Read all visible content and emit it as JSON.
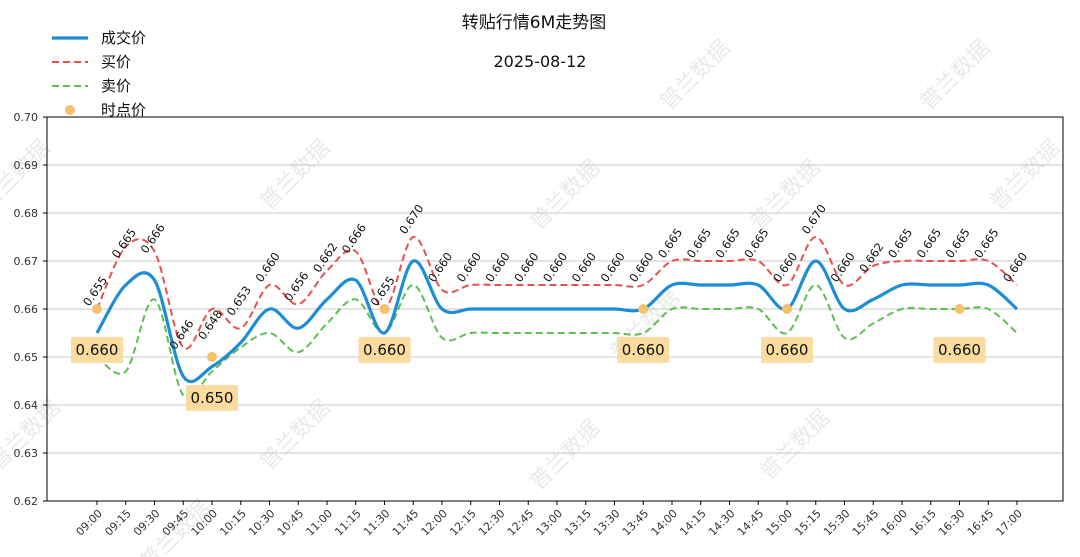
{
  "chart_data": {
    "type": "line",
    "title": "转贴行情6M走势图",
    "subtitle": "2025-08-12",
    "xlabel": "",
    "ylabel": "",
    "ylim": [
      0.62,
      0.7
    ],
    "yticks": [
      "0.62",
      "0.63",
      "0.64",
      "0.65",
      "0.66",
      "0.67",
      "0.68",
      "0.69",
      "0.70"
    ],
    "grid": "horizontal",
    "legend_position": "top-left",
    "categories": [
      "09:00",
      "09:15",
      "09:30",
      "09:45",
      "10:00",
      "10:15",
      "10:30",
      "10:45",
      "11:00",
      "11:15",
      "11:30",
      "11:45",
      "12:00",
      "12:15",
      "12:30",
      "12:45",
      "13:00",
      "13:15",
      "13:30",
      "13:45",
      "14:00",
      "14:15",
      "14:30",
      "14:45",
      "15:00",
      "15:15",
      "15:30",
      "15:45",
      "16:00",
      "16:15",
      "16:30",
      "16:45",
      "17:00"
    ],
    "series": [
      {
        "name": "成交价",
        "color": "#1f8dd6",
        "style": "solid",
        "values": [
          0.655,
          0.665,
          0.666,
          0.646,
          0.648,
          0.653,
          0.66,
          0.656,
          0.662,
          0.666,
          0.655,
          0.67,
          0.66,
          0.66,
          0.66,
          0.66,
          0.66,
          0.66,
          0.66,
          0.66,
          0.665,
          0.665,
          0.665,
          0.665,
          0.66,
          0.67,
          0.66,
          0.662,
          0.665,
          0.665,
          0.665,
          0.665,
          0.66
        ]
      },
      {
        "name": "买价",
        "color": "#e8504f",
        "style": "dashed",
        "values": [
          0.66,
          0.673,
          0.672,
          0.652,
          0.66,
          0.656,
          0.665,
          0.661,
          0.668,
          0.672,
          0.66,
          0.675,
          0.664,
          0.665,
          0.665,
          0.665,
          0.665,
          0.665,
          0.665,
          0.665,
          0.67,
          0.67,
          0.67,
          0.67,
          0.665,
          0.675,
          0.665,
          0.669,
          0.67,
          0.67,
          0.67,
          0.67,
          0.665
        ]
      },
      {
        "name": "卖价",
        "color": "#5cbf4f",
        "style": "dashed",
        "values": [
          0.65,
          0.647,
          0.662,
          0.642,
          0.647,
          0.652,
          0.655,
          0.651,
          0.657,
          0.662,
          0.655,
          0.665,
          0.654,
          0.655,
          0.655,
          0.655,
          0.655,
          0.655,
          0.655,
          0.655,
          0.66,
          0.66,
          0.66,
          0.66,
          0.655,
          0.665,
          0.654,
          0.657,
          0.66,
          0.66,
          0.66,
          0.66,
          0.655
        ]
      }
    ],
    "point_labels": [
      "0.655",
      "0.665",
      "0.666",
      "0.646",
      "0.648",
      "0.653",
      "0.660",
      "0.656",
      "0.662",
      "0.666",
      "0.655",
      "0.670",
      "0.660",
      "0.660",
      "0.660",
      "0.660",
      "0.660",
      "0.660",
      "0.660",
      "0.660",
      "0.665",
      "0.665",
      "0.665",
      "0.665",
      "0.660",
      "0.670",
      "0.660",
      "0.662",
      "0.665",
      "0.665",
      "0.665",
      "0.665",
      "0.660"
    ],
    "time_points": {
      "name": "时点价",
      "color": "#f5c26b",
      "points": [
        {
          "x": "09:00",
          "value": 0.66,
          "label": "0.660"
        },
        {
          "x": "10:00",
          "value": 0.65,
          "label": "0.650"
        },
        {
          "x": "11:30",
          "value": 0.66,
          "label": "0.660"
        },
        {
          "x": "13:45",
          "value": 0.66,
          "label": "0.660"
        },
        {
          "x": "15:00",
          "value": 0.66,
          "label": "0.660"
        },
        {
          "x": "16:30",
          "value": 0.66,
          "label": "0.660"
        }
      ]
    },
    "legend": [
      "成交价",
      "买价",
      "卖价",
      "时点价"
    ],
    "callout_color": "#fbdc9f"
  },
  "watermark": "普兰数据"
}
